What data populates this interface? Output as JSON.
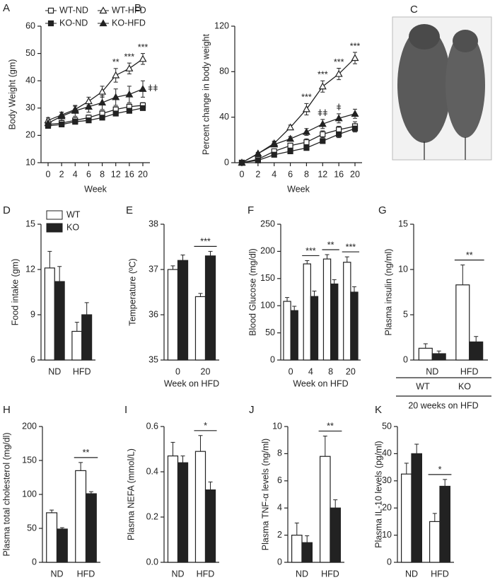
{
  "chart_data": [
    {
      "type": "line",
      "panel": "A",
      "ylabel": "Body Weight (gm)",
      "xlabel": "Week",
      "categories": [
        "0",
        "2",
        "4",
        "6",
        "8",
        "12",
        "16",
        "20"
      ],
      "ylim": [
        10,
        60
      ],
      "yticks": [
        10,
        20,
        30,
        40,
        50,
        60
      ],
      "legend": true,
      "series": [
        {
          "name": "WT-ND",
          "color": "#222222",
          "marker": "open-square",
          "values": [
            24,
            24.5,
            25.5,
            26.5,
            28,
            29.5,
            30.5,
            31
          ],
          "errors": [
            1,
            0.8,
            1,
            1,
            1,
            1,
            1,
            1
          ]
        },
        {
          "name": "WT-HFD",
          "color": "#222222",
          "marker": "open-triangle",
          "values": [
            25.5,
            27.5,
            29.5,
            32.5,
            36,
            42,
            44.5,
            48
          ],
          "errors": [
            1,
            1,
            1.2,
            1.5,
            2,
            2.5,
            2,
            2
          ]
        },
        {
          "name": "KO-ND",
          "color": "#222222",
          "marker": "filled-square",
          "values": [
            23.5,
            24,
            25,
            25.5,
            26.5,
            28,
            29,
            30
          ],
          "errors": [
            0.8,
            0.6,
            0.7,
            0.8,
            0.8,
            0.8,
            0.8,
            0.8
          ]
        },
        {
          "name": "KO-HFD",
          "color": "#222222",
          "marker": "filled-triangle",
          "values": [
            24.5,
            27,
            29,
            30.5,
            32,
            34,
            35,
            37
          ],
          "errors": [
            1.5,
            1.5,
            2,
            2,
            2.5,
            3,
            3,
            3
          ]
        }
      ],
      "annotations": [
        {
          "text": "**",
          "x": "12",
          "series": "WT-HFD",
          "placement": "above"
        },
        {
          "text": "***",
          "x": "16",
          "series": "WT-HFD",
          "placement": "above"
        },
        {
          "text": "***",
          "x": "20",
          "series": "WT-HFD",
          "placement": "above"
        },
        {
          "text": "ǂǂ",
          "x": "20",
          "series": "KO-HFD",
          "placement": "right"
        }
      ]
    },
    {
      "type": "line",
      "panel": "B",
      "ylabel": "Percent change in body weight",
      "xlabel": "Week",
      "categories": [
        "0",
        "2",
        "4",
        "6",
        "8",
        "12",
        "16",
        "20"
      ],
      "ylim": [
        0,
        120
      ],
      "yticks": [
        0,
        40,
        80,
        120
      ],
      "legend": false,
      "series": [
        {
          "color": "#222222",
          "marker": "open-square",
          "values": [
            0,
            3,
            10,
            15,
            18,
            25,
            29,
            32
          ],
          "errors": [
            0,
            1,
            2,
            2,
            3,
            3,
            3,
            4
          ]
        },
        {
          "color": "#222222",
          "marker": "open-triangle",
          "values": [
            0,
            8,
            17,
            31,
            47,
            67,
            78,
            92
          ],
          "errors": [
            0,
            1,
            2,
            2,
            5,
            5,
            5,
            5
          ]
        },
        {
          "color": "#222222",
          "marker": "filled-square",
          "values": [
            0,
            2,
            7,
            10,
            13,
            19,
            25,
            30
          ],
          "errors": [
            0,
            1,
            1.5,
            2,
            2,
            2,
            3,
            3
          ]
        },
        {
          "color": "#222222",
          "marker": "filled-triangle",
          "values": [
            0,
            8,
            16,
            21,
            27,
            34,
            39,
            43
          ],
          "errors": [
            0,
            1,
            2,
            2,
            3,
            4,
            4,
            4
          ]
        }
      ],
      "annotations": [
        {
          "text": "***",
          "x": "8",
          "series_index": 1,
          "placement": "above"
        },
        {
          "text": "***",
          "x": "12",
          "series_index": 1,
          "placement": "above"
        },
        {
          "text": "***",
          "x": "16",
          "series_index": 1,
          "placement": "above"
        },
        {
          "text": "***",
          "x": "20",
          "series_index": 1,
          "placement": "above"
        },
        {
          "text": "ǂǂ",
          "x": "12",
          "series_index": 3,
          "placement": "above"
        },
        {
          "text": "ǂ",
          "x": "16",
          "series_index": 3,
          "placement": "above"
        }
      ]
    },
    {
      "type": "bar",
      "panel": "D",
      "ylabel": "Food intake (gm)",
      "categories": [
        "ND",
        "HFD"
      ],
      "ylim": [
        6,
        15
      ],
      "yticks": [
        6,
        9,
        12,
        15
      ],
      "legend": true,
      "series": [
        {
          "name": "WT",
          "color": "#ffffff",
          "values": [
            12.1,
            7.9
          ],
          "errors": [
            1.1,
            0.6
          ]
        },
        {
          "name": "KO",
          "color": "#222222",
          "values": [
            11.2,
            9.0
          ],
          "errors": [
            1.0,
            0.8
          ]
        }
      ],
      "annotations": []
    },
    {
      "type": "bar",
      "panel": "E",
      "ylabel": "Temperature (ºC)",
      "xlabel": "Week on HFD",
      "categories": [
        "0",
        "20"
      ],
      "ylim": [
        35,
        38
      ],
      "yticks": [
        35,
        36,
        37,
        38
      ],
      "legend": false,
      "series": [
        {
          "color": "#ffffff",
          "values": [
            37.0,
            36.4
          ],
          "errors": [
            0.08,
            0.07
          ]
        },
        {
          "color": "#222222",
          "values": [
            37.2,
            37.3
          ],
          "errors": [
            0.12,
            0.1
          ]
        }
      ],
      "annotations": [
        {
          "text": "***",
          "category": "20"
        }
      ]
    },
    {
      "type": "bar",
      "panel": "F",
      "ylabel": "Blood Glucose (mg/dl)",
      "xlabel": "Week on HFD",
      "categories": [
        "0",
        "4",
        "8",
        "20"
      ],
      "ylim": [
        0,
        250
      ],
      "yticks": [
        0,
        50,
        100,
        150,
        200,
        250
      ],
      "legend": false,
      "series": [
        {
          "color": "#ffffff",
          "values": [
            108,
            177,
            186,
            180
          ],
          "errors": [
            7,
            6,
            8,
            10
          ]
        },
        {
          "color": "#222222",
          "values": [
            91,
            117,
            140,
            125
          ],
          "errors": [
            8,
            10,
            8,
            10
          ]
        }
      ],
      "annotations": [
        {
          "text": "***",
          "category": "4"
        },
        {
          "text": "**",
          "category": "8"
        },
        {
          "text": "***",
          "category": "20"
        }
      ]
    },
    {
      "type": "bar",
      "panel": "G",
      "ylabel": "Plasma insulin (ng/ml)",
      "categories": [
        "ND",
        "HFD"
      ],
      "ylim": [
        0,
        15
      ],
      "yticks": [
        0,
        5,
        10,
        15
      ],
      "legend": false,
      "series": [
        {
          "color": "#ffffff",
          "values": [
            1.3,
            8.3
          ],
          "errors": [
            0.5,
            2.2
          ]
        },
        {
          "color": "#222222",
          "values": [
            0.7,
            2.0
          ],
          "errors": [
            0.3,
            0.6
          ]
        }
      ],
      "annotations": [
        {
          "text": "**",
          "category": "HFD"
        }
      ]
    },
    {
      "type": "bar",
      "panel": "H",
      "ylabel": "Plasma total cholesterol (mg/dl)",
      "categories": [
        "ND",
        "HFD"
      ],
      "ylim": [
        0,
        200
      ],
      "yticks": [
        0,
        50,
        100,
        150,
        200
      ],
      "legend": false,
      "series": [
        {
          "color": "#ffffff",
          "values": [
            73,
            135
          ],
          "errors": [
            4,
            12
          ]
        },
        {
          "color": "#222222",
          "values": [
            49,
            101
          ],
          "errors": [
            2,
            3
          ]
        }
      ],
      "annotations": [
        {
          "text": "**",
          "category": "HFD"
        }
      ]
    },
    {
      "type": "bar",
      "panel": "I",
      "ylabel": "Plasma NEFA (mmol/L)",
      "categories": [
        "ND",
        "HFD"
      ],
      "ylim": [
        0,
        0.6
      ],
      "yticks": [
        {
          "value": 0,
          "label": "0.0"
        },
        0.2,
        0.4,
        0.6
      ],
      "legend": false,
      "series": [
        {
          "color": "#ffffff",
          "values": [
            0.47,
            0.49
          ],
          "errors": [
            0.06,
            0.07
          ]
        },
        {
          "color": "#222222",
          "values": [
            0.44,
            0.32
          ],
          "errors": [
            0.03,
            0.035
          ]
        }
      ],
      "annotations": [
        {
          "text": "*",
          "category": "HFD"
        }
      ]
    },
    {
      "type": "bar",
      "panel": "J",
      "ylabel": "Plasma TNF-α levels (ng/ml)",
      "categories": [
        "ND",
        "HFD"
      ],
      "ylim": [
        0,
        10
      ],
      "yticks": [
        0,
        2,
        4,
        6,
        8,
        10
      ],
      "legend": false,
      "series": [
        {
          "color": "#ffffff",
          "values": [
            2.0,
            7.8
          ],
          "errors": [
            0.9,
            1.5
          ]
        },
        {
          "color": "#222222",
          "values": [
            1.45,
            4.0
          ],
          "errors": [
            0.5,
            0.6
          ]
        }
      ],
      "annotations": [
        {
          "text": "**",
          "category": "HFD"
        }
      ]
    },
    {
      "type": "bar",
      "panel": "K",
      "ylabel": "Plasma IL-10 levels (pg/ml)",
      "categories": [
        "ND",
        "HFD"
      ],
      "ylim": [
        0,
        50
      ],
      "yticks": [
        0,
        10,
        20,
        30,
        40,
        50
      ],
      "legend": false,
      "series": [
        {
          "color": "#ffffff",
          "values": [
            32.5,
            15
          ],
          "errors": [
            4,
            3
          ]
        },
        {
          "color": "#222222",
          "values": [
            40,
            28
          ],
          "errors": [
            3.5,
            2.5
          ]
        }
      ],
      "annotations": [
        {
          "text": "*",
          "category": "HFD"
        }
      ]
    }
  ],
  "photo": {
    "panel": "C",
    "labels": [
      "WT",
      "KO"
    ],
    "caption": "20 weeks on HFD"
  }
}
